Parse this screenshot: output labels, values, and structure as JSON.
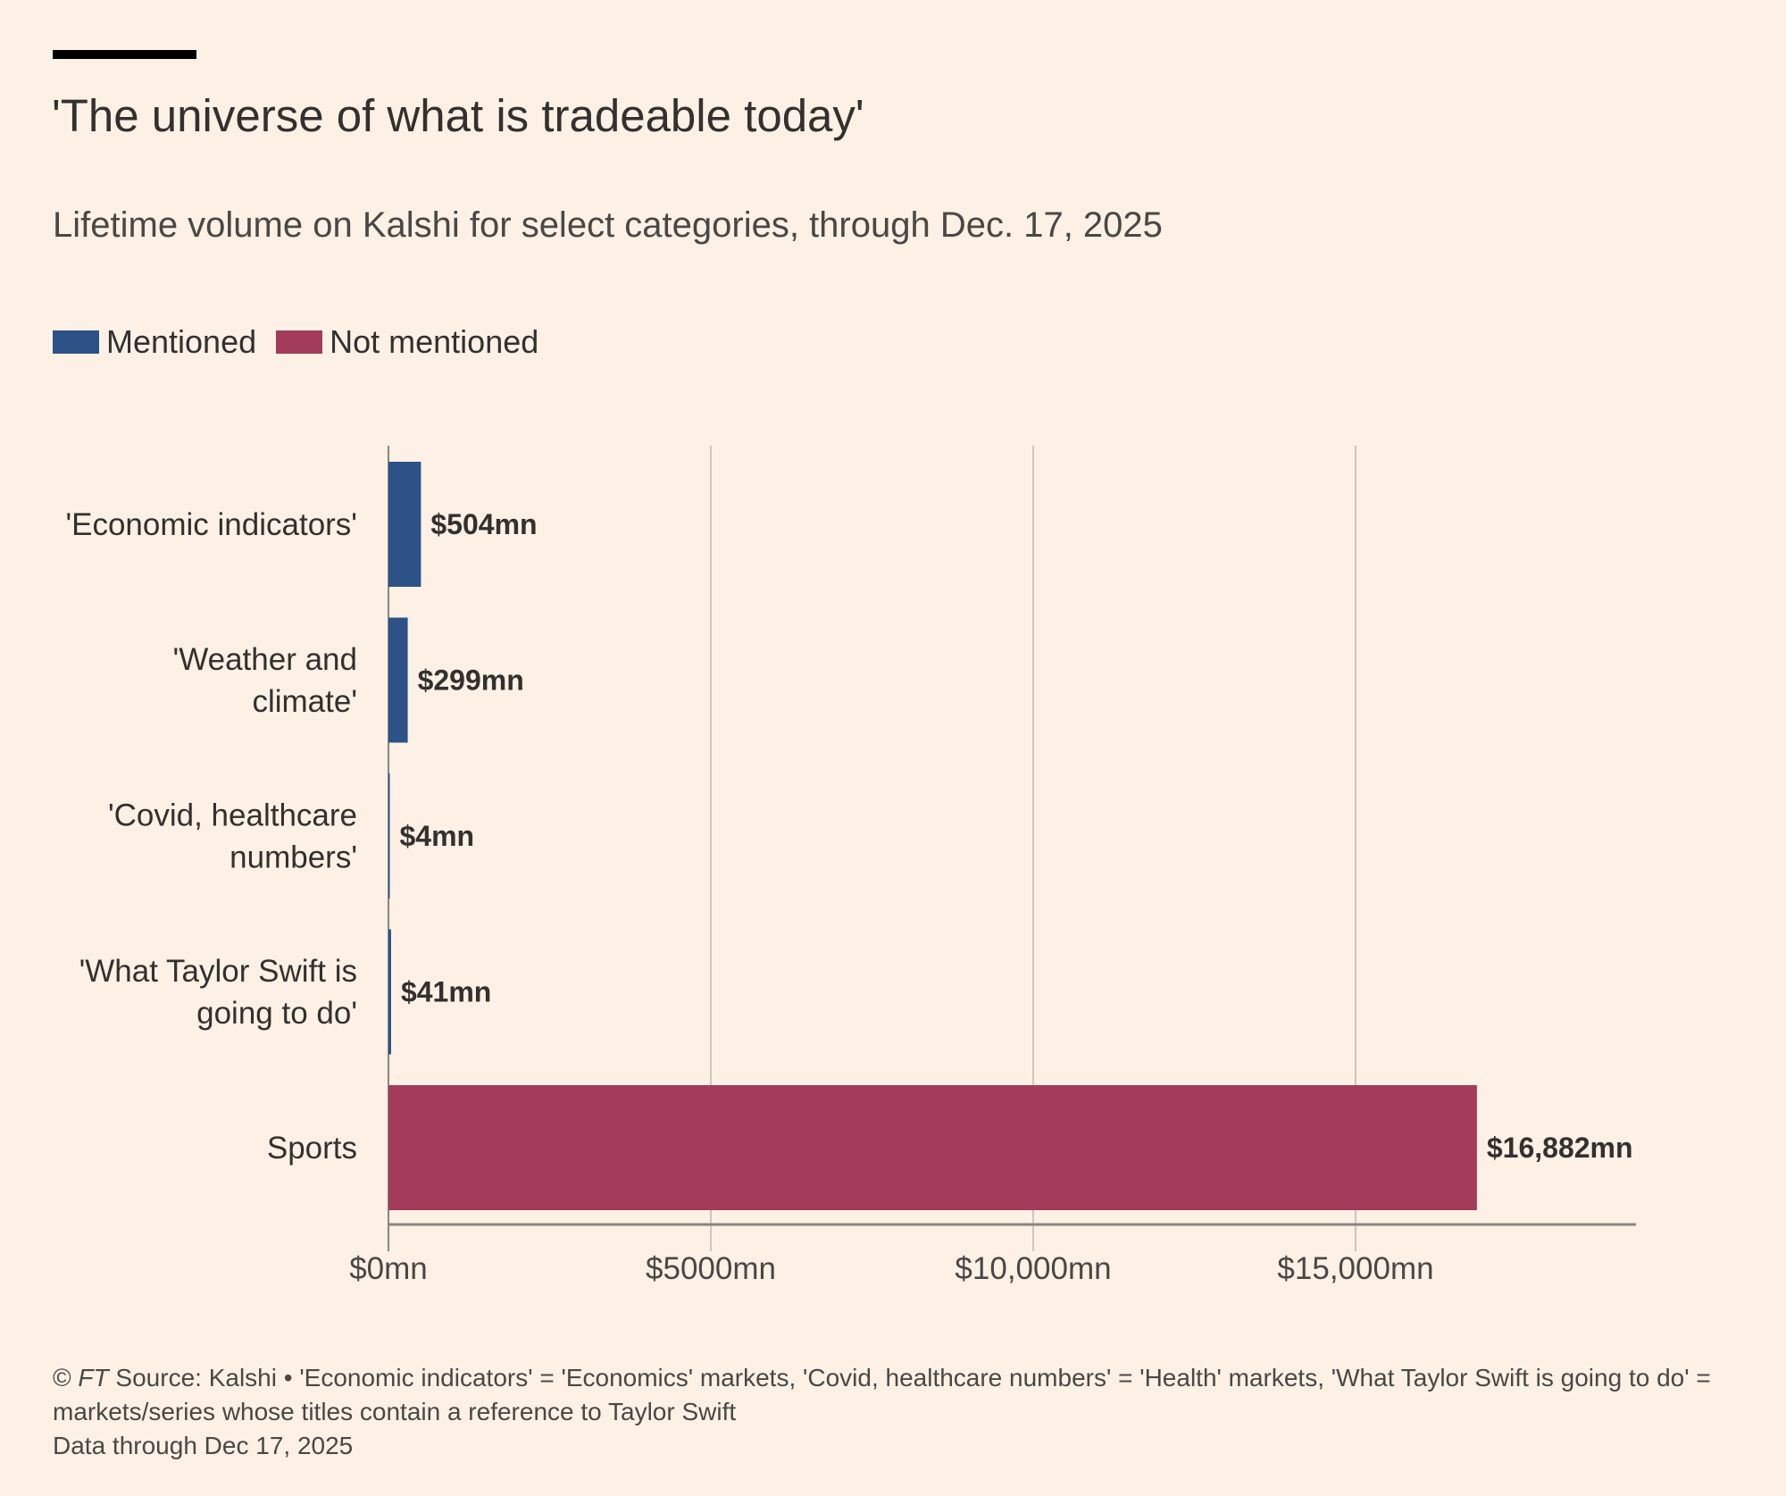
{
  "title": "'The universe of what is tradeable today'",
  "subtitle": "Lifetime volume on Kalshi for select categories, through Dec. 17, 2025",
  "legend": [
    {
      "label": "Mentioned",
      "color": "#2c5287"
    },
    {
      "label": "Not mentioned",
      "color": "#a33b5a"
    }
  ],
  "chart_data": {
    "type": "bar",
    "orientation": "horizontal",
    "title": "'The universe of what is tradeable today'",
    "categories": [
      [
        "'Economic indicators'"
      ],
      [
        "'Weather and",
        "climate'"
      ],
      [
        "'Covid, healthcare",
        "numbers'"
      ],
      [
        "'What Taylor Swift is",
        "going to do'"
      ],
      [
        "Sports"
      ]
    ],
    "values": [
      504,
      299,
      4,
      41,
      16882
    ],
    "value_labels": [
      "$504mn",
      "$299mn",
      "$4mn",
      "$41mn",
      "$16,882mn"
    ],
    "groups": [
      "Mentioned",
      "Mentioned",
      "Mentioned",
      "Mentioned",
      "Not mentioned"
    ],
    "xticks": [
      0,
      5000,
      10000,
      15000
    ],
    "xtick_labels": [
      "$0mn",
      "$5000mn",
      "$10,000mn",
      "$15,000mn"
    ],
    "xlim": [
      0,
      19350
    ],
    "xlabel": "",
    "ylabel": "",
    "grid": true,
    "legend_position": "top-left"
  },
  "footer": {
    "copyright": "© ",
    "ft": "FT",
    "source": " Source: Kalshi • 'Economic indicators' = 'Economics' markets, 'Covid, healthcare numbers' = 'Health' markets, 'What Taylor Swift is going to do' = markets/series whose titles contain a reference to Taylor Swift",
    "note": "Data through Dec 17, 2025"
  }
}
